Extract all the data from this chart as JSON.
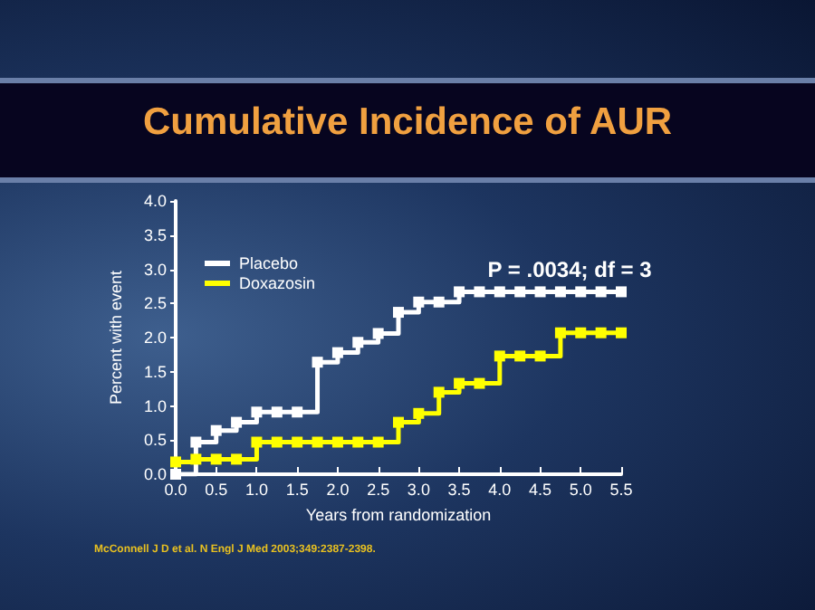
{
  "chart_data": {
    "type": "step",
    "title": "Cumulative Incidence of AUR",
    "xlabel": "Years from randomization",
    "ylabel": "Percent with event",
    "annotations": [
      "P = .0034; df = 3",
      "McConnell J D et al. N Engl J Med 2003;349:2387-2398."
    ],
    "x": [
      0,
      0.25,
      0.5,
      0.75,
      1.0,
      1.25,
      1.5,
      1.75,
      2.0,
      2.25,
      2.5,
      2.75,
      3.0,
      3.25,
      3.5,
      3.75,
      4.0,
      4.25,
      4.5,
      4.75,
      5.0,
      5.25,
      5.5
    ],
    "series": [
      {
        "name": "Placebo",
        "color": "#ffffff",
        "values": [
          0,
          0.47,
          0.64,
          0.76,
          0.91,
          0.91,
          0.91,
          1.64,
          1.78,
          1.93,
          2.06,
          2.37,
          2.52,
          2.52,
          2.67,
          2.67,
          2.67,
          2.67,
          2.67,
          2.67,
          2.67,
          2.67,
          2.67
        ]
      },
      {
        "name": "Doxazosin",
        "color": "#ffff00",
        "values": [
          0.18,
          0.22,
          0.22,
          0.22,
          0.47,
          0.47,
          0.47,
          0.47,
          0.47,
          0.47,
          0.47,
          0.76,
          0.89,
          1.2,
          1.33,
          1.33,
          1.73,
          1.73,
          1.73,
          2.07,
          2.07,
          2.07,
          2.07
        ]
      }
    ],
    "xlim": [
      0,
      5.5
    ],
    "xticks": [
      {
        "value": 0,
        "label": "0.0"
      },
      {
        "value": 0.5,
        "label": "0.5"
      },
      {
        "value": 1,
        "label": "1.0"
      },
      {
        "value": 1.5,
        "label": "1.5"
      },
      {
        "value": 2,
        "label": "2.0"
      },
      {
        "value": 2.5,
        "label": "2.5"
      },
      {
        "value": 3,
        "label": "3.0"
      },
      {
        "value": 3.5,
        "label": "3.5"
      },
      {
        "value": 4,
        "label": "4.0"
      },
      {
        "value": 4.5,
        "label": "4.5"
      },
      {
        "value": 5,
        "label": "5.0"
      },
      {
        "value": 5.5,
        "label": "5.5"
      }
    ],
    "ylim": [
      0,
      4
    ],
    "yticks": [
      {
        "value": 0,
        "label": "0.0"
      },
      {
        "value": 0.5,
        "label": "0.5"
      },
      {
        "value": 1,
        "label": "1.0"
      },
      {
        "value": 1.5,
        "label": "1.5"
      },
      {
        "value": 2,
        "label": "2.0"
      },
      {
        "value": 2.5,
        "label": "2.5"
      },
      {
        "value": 3,
        "label": "3.0"
      },
      {
        "value": 3.5,
        "label": "3.5"
      },
      {
        "value": 4,
        "label": "4.0"
      }
    ],
    "grid": false,
    "legend": "top left",
    "marker": "square",
    "line_style": "solid"
  }
}
